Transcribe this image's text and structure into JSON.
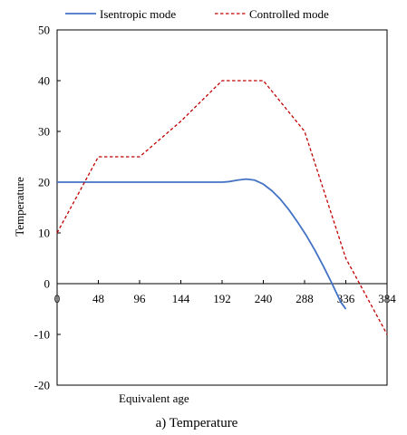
{
  "chart_data": {
    "type": "line",
    "title": "",
    "caption": "a) Temperature",
    "xlabel": "Equivalent age",
    "ylabel": "Temperature",
    "xlim": [
      0,
      384
    ],
    "ylim": [
      -20,
      50
    ],
    "x_ticks": [
      0,
      48,
      96,
      144,
      192,
      240,
      288,
      336,
      384
    ],
    "y_ticks": [
      -20,
      -10,
      0,
      10,
      20,
      30,
      40,
      50
    ],
    "grid": false,
    "legend_position": "top",
    "series": [
      {
        "name": "Isentropic mode",
        "color": "#4472c4",
        "style": "solid",
        "x": [
          0,
          48,
          96,
          144,
          192,
          200,
          210,
          220,
          230,
          240,
          250,
          260,
          270,
          280,
          290,
          300,
          310,
          320,
          330,
          336
        ],
        "y": [
          20,
          20,
          20,
          20,
          20,
          20.1,
          20.4,
          20.6,
          20.4,
          19.6,
          18.3,
          16.6,
          14.5,
          12.1,
          9.5,
          6.6,
          3.4,
          0.0,
          -3.6,
          -5.0
        ]
      },
      {
        "name": "Controlled mode",
        "color": "#c00000",
        "style": "dashed",
        "x": [
          0,
          48,
          96,
          144,
          192,
          240,
          288,
          336,
          384
        ],
        "y": [
          10,
          25,
          25,
          32,
          40,
          40,
          30,
          5,
          -10
        ]
      }
    ]
  }
}
